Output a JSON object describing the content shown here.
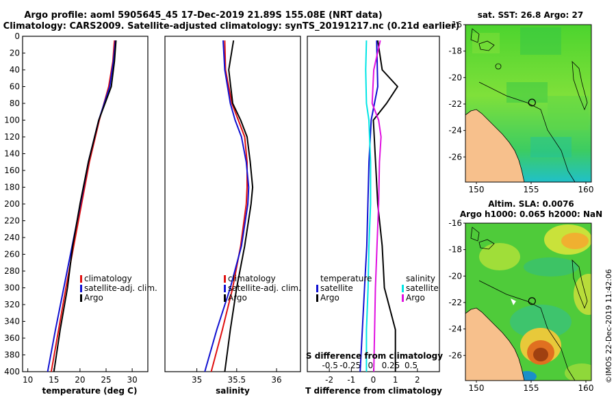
{
  "title": {
    "line1": "Argo profile: aoml 5905645_45 17-Dec-2019 21.89S 155.08E (NRT data)",
    "line2": "Climatology: CARS2009. Satellite-adjusted climatology: synTS_20191217.nc (0.21d earlier)"
  },
  "credit": "©IMOS 22-Dec-2019 11:42:06",
  "colors": {
    "climatology": "#e01010",
    "satellite": "#1010d0",
    "argo": "#000000",
    "sal_satellite": "#00e5e5",
    "sal_argo": "#e010e0",
    "land": "#f7c08c",
    "sea_green": "#55d038"
  },
  "chart_data": [
    {
      "id": "temperature",
      "type": "line",
      "xlabel": "temperature (deg C)",
      "ylabel": "depth",
      "xlim": [
        9,
        33
      ],
      "ylim": [
        400,
        0
      ],
      "xticks": [
        10,
        15,
        20,
        25,
        30
      ],
      "yticks": [
        0,
        20,
        40,
        60,
        80,
        100,
        120,
        140,
        160,
        180,
        200,
        220,
        240,
        260,
        280,
        300,
        320,
        340,
        360,
        380,
        400
      ],
      "legend": {
        "position": "center-right",
        "entries": [
          "climatology",
          "satellite-adj. clim.",
          "Argo"
        ]
      },
      "series": [
        {
          "name": "climatology",
          "color": "#e01010",
          "depth": [
            5,
            30,
            60,
            100,
            150,
            200,
            250,
            300,
            350,
            400
          ],
          "values": [
            26.6,
            26.3,
            25.5,
            23.7,
            21.8,
            20.3,
            18.8,
            17.3,
            15.9,
            14.5
          ]
        },
        {
          "name": "satellite-adj. clim.",
          "color": "#1010d0",
          "depth": [
            5,
            30,
            60,
            100,
            150,
            200,
            250,
            300,
            350,
            400
          ],
          "values": [
            26.8,
            26.4,
            25.7,
            23.6,
            21.6,
            20.1,
            18.5,
            16.9,
            15.3,
            13.8
          ]
        },
        {
          "name": "Argo",
          "color": "#000000",
          "depth": [
            5,
            30,
            60,
            80,
            100,
            150,
            200,
            250,
            300,
            350,
            400
          ],
          "values": [
            26.9,
            26.6,
            26.0,
            24.8,
            23.6,
            21.6,
            20.0,
            18.6,
            17.6,
            16.2,
            15.0
          ]
        }
      ]
    },
    {
      "id": "salinity",
      "type": "line",
      "xlabel": "salinity",
      "ylabel": "depth",
      "xlim": [
        34.6,
        36.3
      ],
      "ylim": [
        400,
        0
      ],
      "xticks": [
        35,
        35.5,
        36
      ],
      "xtick_labels": [
        "35",
        "35.5",
        "36"
      ],
      "legend": {
        "position": "center-right",
        "entries": [
          "climatology",
          "satellite-adj. clim.",
          "Argo"
        ]
      },
      "series": [
        {
          "name": "climatology",
          "color": "#e01010",
          "depth": [
            5,
            40,
            80,
            100,
            120,
            150,
            180,
            200,
            250,
            300,
            350,
            400
          ],
          "values": [
            35.35,
            35.36,
            35.44,
            35.52,
            35.6,
            35.63,
            35.63,
            35.62,
            35.55,
            35.45,
            35.32,
            35.18
          ]
        },
        {
          "name": "satellite-adj. clim.",
          "color": "#1010d0",
          "depth": [
            5,
            40,
            80,
            100,
            120,
            150,
            180,
            200,
            250,
            300,
            350,
            400
          ],
          "values": [
            35.33,
            35.35,
            35.42,
            35.48,
            35.56,
            35.62,
            35.65,
            35.64,
            35.56,
            35.42,
            35.25,
            35.1
          ]
        },
        {
          "name": "Argo",
          "color": "#000000",
          "depth": [
            5,
            40,
            80,
            100,
            120,
            150,
            180,
            200,
            250,
            300,
            350,
            400
          ],
          "values": [
            35.46,
            35.4,
            35.45,
            35.55,
            35.63,
            35.67,
            35.7,
            35.68,
            35.6,
            35.5,
            35.42,
            35.35
          ]
        }
      ]
    },
    {
      "id": "difference",
      "type": "line",
      "xlabel": "T difference from climatology",
      "top_label": "S difference from climatology",
      "xlim": [
        -3,
        3
      ],
      "ylim": [
        400,
        0
      ],
      "xticks": [
        -2,
        -1,
        0,
        1,
        2
      ],
      "xtick_labels": [
        "-2",
        "-1",
        "0",
        "1",
        "2"
      ],
      "sticks": [
        -0.5,
        -0.25,
        0,
        0.25,
        0.5
      ],
      "stick_labels": [
        "-0.5",
        "-0.25",
        "0",
        "0.25",
        "0.5"
      ],
      "legend_temperature": {
        "title": "temperature",
        "entries": [
          "satellite",
          "Argo"
        ]
      },
      "legend_salinity": {
        "title": "salinity",
        "entries": [
          "satellite",
          "Argo"
        ]
      },
      "series": [
        {
          "name": "T satellite",
          "color": "#1010d0",
          "depth": [
            5,
            60,
            100,
            150,
            200,
            250,
            300,
            350,
            400
          ],
          "values": [
            0.15,
            0.2,
            -0.1,
            -0.2,
            -0.25,
            -0.3,
            -0.4,
            -0.5,
            -0.6
          ]
        },
        {
          "name": "T Argo",
          "color": "#000000",
          "depth": [
            5,
            40,
            60,
            80,
            100,
            150,
            200,
            250,
            300,
            350,
            400
          ],
          "values": [
            0.2,
            0.4,
            1.1,
            0.6,
            0.0,
            0.1,
            0.2,
            0.4,
            0.5,
            1.0,
            1.0
          ]
        },
        {
          "name": "S satellite",
          "color": "#00e5e5",
          "depth": [
            5,
            40,
            80,
            100,
            150,
            200,
            250,
            300,
            350,
            400
          ],
          "values": [
            -0.05,
            -0.06,
            -0.05,
            -0.02,
            0.0,
            0.0,
            -0.02,
            -0.03,
            -0.05,
            -0.05
          ]
        },
        {
          "name": "S Argo",
          "color": "#e010e0",
          "depth": [
            5,
            40,
            80,
            100,
            120,
            150,
            200,
            250,
            300,
            350,
            400
          ],
          "values": [
            0.12,
            0.04,
            0.02,
            0.1,
            0.13,
            0.11,
            0.1,
            0.08,
            0.06,
            0.05,
            0.04
          ]
        }
      ]
    },
    {
      "id": "sst_map",
      "type": "heatmap",
      "title": "sat. SST: 26.8 Argo: 27",
      "xlim": [
        149,
        160.5
      ],
      "ylim": [
        -27.9,
        -16
      ],
      "xticks": [
        150,
        155,
        160
      ],
      "yticks": [
        -16,
        -18,
        -20,
        -22,
        -24,
        -26
      ],
      "marker": {
        "lon": 155.08,
        "lat": -21.89
      }
    },
    {
      "id": "sla_map",
      "type": "heatmap",
      "title_line1": "Altim. SLA: 0.0076",
      "title_line2": "Argo h1000: 0.065 h2000: NaN",
      "xlim": [
        149,
        160.5
      ],
      "ylim": [
        -27.9,
        -16
      ],
      "xticks": [
        150,
        155,
        160
      ],
      "yticks": [
        -16,
        -18,
        -20,
        -22,
        -24,
        -26
      ],
      "marker": {
        "lon": 155.08,
        "lat": -21.89
      }
    }
  ]
}
